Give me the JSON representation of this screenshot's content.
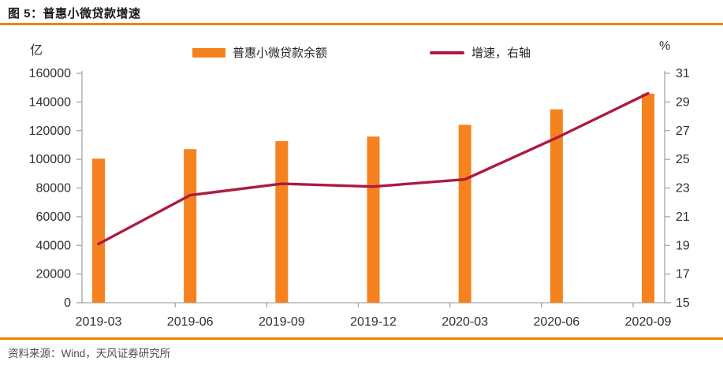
{
  "title": "图 5：普惠小微贷款增速",
  "source": "资料来源：Wind，天风证券研究所",
  "left_axis_unit": "亿",
  "right_axis_unit": "%",
  "colors": {
    "accent_orange": "#F08300",
    "bar": "#F5821F",
    "line": "#AC1B40",
    "axis_line": "#A6A6A6",
    "tick_text": "#303030",
    "title_text": "#1A1A1A",
    "source_text": "#4D4D4D"
  },
  "chart_data": {
    "type": "bar+line",
    "title": "图 5：普惠小微贷款增速",
    "categories": [
      "2019-03",
      "2019-06",
      "2019-09",
      "2019-12",
      "2020-03",
      "2020-06",
      "2020-09"
    ],
    "series": [
      {
        "name": "普惠小微贷款余额",
        "type": "bar",
        "axis": "left",
        "color": "#F5821F",
        "values": [
          100500,
          107100,
          112700,
          115900,
          124100,
          134900,
          145800
        ]
      },
      {
        "name": "增速，右轴",
        "type": "line",
        "axis": "right",
        "color": "#AC1B40",
        "values": [
          19.1,
          22.5,
          23.3,
          23.1,
          23.6,
          26.5,
          29.6
        ]
      }
    ],
    "left_axis": {
      "unit": "亿",
      "min": 0,
      "max": 160000,
      "step": 20000
    },
    "right_axis": {
      "unit": "%",
      "min": 15,
      "max": 31,
      "step": 2
    },
    "grid": false,
    "legend_position": "top-center"
  }
}
